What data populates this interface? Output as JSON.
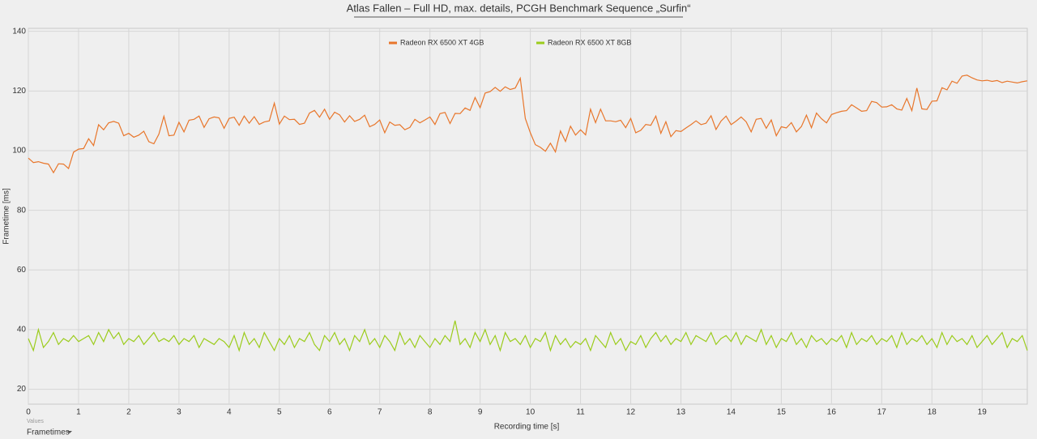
{
  "chart_data": {
    "type": "line",
    "title": "Atlas Fallen – Full HD, max. details, PCGH Benchmark Sequence „Surfin“",
    "x_label": "Recording time [s]",
    "y_label": "Frametime [ms]",
    "x_sublabel": "Values",
    "selector": "Frametimes",
    "xlim": [
      0,
      19.9
    ],
    "ylim": [
      15,
      141
    ],
    "xticks": [
      0,
      1,
      2,
      3,
      4,
      5,
      6,
      7,
      8,
      9,
      10,
      11,
      12,
      13,
      14,
      15,
      16,
      17,
      18,
      19
    ],
    "yticks": [
      20,
      40,
      60,
      80,
      100,
      120,
      140
    ],
    "grid": true,
    "legend": "top",
    "x": [
      0,
      0.1,
      0.2,
      0.3,
      0.4,
      0.5,
      0.6,
      0.7,
      0.8,
      0.9,
      1,
      1.1,
      1.2,
      1.3,
      1.4,
      1.5,
      1.6,
      1.7,
      1.8,
      1.9,
      2,
      2.1,
      2.2,
      2.3,
      2.4,
      2.5,
      2.6,
      2.7,
      2.8,
      2.9,
      3,
      3.1,
      3.2,
      3.3,
      3.4,
      3.5,
      3.6,
      3.7,
      3.8,
      3.9,
      4,
      4.1,
      4.2,
      4.3,
      4.4,
      4.5,
      4.6,
      4.7,
      4.8,
      4.9,
      5,
      5.1,
      5.2,
      5.3,
      5.4,
      5.5,
      5.6,
      5.7,
      5.8,
      5.9,
      6,
      6.1,
      6.2,
      6.3,
      6.4,
      6.5,
      6.6,
      6.7,
      6.8,
      6.9,
      7,
      7.1,
      7.2,
      7.3,
      7.4,
      7.5,
      7.6,
      7.7,
      7.8,
      7.9,
      8,
      8.1,
      8.2,
      8.3,
      8.4,
      8.5,
      8.6,
      8.7,
      8.8,
      8.9,
      9,
      9.1,
      9.2,
      9.3,
      9.4,
      9.5,
      9.6,
      9.7,
      9.8,
      9.9,
      10,
      10.1,
      10.2,
      10.3,
      10.4,
      10.5,
      10.6,
      10.7,
      10.8,
      10.9,
      11,
      11.1,
      11.2,
      11.3,
      11.4,
      11.5,
      11.6,
      11.7,
      11.8,
      11.9,
      12,
      12.1,
      12.2,
      12.3,
      12.4,
      12.5,
      12.6,
      12.7,
      12.8,
      12.9,
      13,
      13.1,
      13.2,
      13.3,
      13.4,
      13.5,
      13.6,
      13.7,
      13.8,
      13.9,
      14,
      14.1,
      14.2,
      14.3,
      14.4,
      14.5,
      14.6,
      14.7,
      14.8,
      14.9,
      15,
      15.1,
      15.2,
      15.3,
      15.4,
      15.5,
      15.6,
      15.7,
      15.8,
      15.9,
      16,
      16.1,
      16.2,
      16.3,
      16.4,
      16.5,
      16.6,
      16.7,
      16.8,
      16.9,
      17,
      17.1,
      17.2,
      17.3,
      17.4,
      17.5,
      17.6,
      17.7,
      17.8,
      17.9,
      18,
      18.1,
      18.2,
      18.3,
      18.4,
      18.5,
      18.6,
      18.7,
      18.8,
      18.9,
      19,
      19.1,
      19.2,
      19.3,
      19.4,
      19.5,
      19.6,
      19.7,
      19.8,
      19.9
    ],
    "series": [
      {
        "name": "Radeon RX 6500 XT 4GB",
        "color": "#e8762b",
        "values": [
          97.5,
          96,
          96.3,
          95.8,
          95.5,
          92.6,
          95.6,
          95.5,
          94,
          99.5,
          100.5,
          100.7,
          104,
          101.7,
          108.7,
          107,
          109.3,
          109.8,
          109.2,
          105,
          105.8,
          104.5,
          105.2,
          106.5,
          103,
          102.3,
          105.5,
          111.5,
          105,
          105.2,
          109.5,
          106.3,
          110.2,
          110.5,
          111.6,
          107.8,
          110.7,
          111.3,
          111,
          107.5,
          110.8,
          111.2,
          108.5,
          111.6,
          109.2,
          111.4,
          108.8,
          109.6,
          110,
          115.9,
          108.9,
          111.6,
          110.4,
          110.5,
          108.8,
          109.2,
          112.6,
          113.5,
          111.2,
          113.9,
          110.5,
          112.9,
          112,
          109.6,
          111.7,
          109.8,
          110.5,
          111.9,
          108,
          108.8,
          110.3,
          106,
          109.6,
          108.5,
          108.7,
          107,
          107.8,
          110.5,
          109.3,
          110.3,
          111.3,
          108.8,
          112.4,
          112.8,
          109.1,
          112.5,
          112.4,
          114.3,
          113.5,
          117.8,
          114.4,
          119.3,
          119.8,
          121.2,
          119.9,
          121.4,
          120.5,
          121,
          124.3,
          110.8,
          106,
          102,
          101.1,
          99.8,
          102.5,
          99.6,
          106.6,
          103.1,
          108.2,
          105.2,
          107,
          105.3,
          113.9,
          109.4,
          113.9,
          110,
          110,
          109.7,
          110.2,
          107.7,
          110.8,
          106,
          106.8,
          108.8,
          108.5,
          111.6,
          105.8,
          109.7,
          104.7,
          106.7,
          106.4,
          107.6,
          108.7,
          110,
          108.7,
          109.2,
          111.7,
          107.1,
          109.9,
          111.6,
          108.7,
          109.9,
          111.3,
          109.7,
          106.3,
          110.5,
          110.8,
          107.5,
          110.3,
          105,
          108,
          107.6,
          109.4,
          106.3,
          108.1,
          111.9,
          107.7,
          112.6,
          110.7,
          109.3,
          112.1,
          112.7,
          113.2,
          113.4,
          115.4,
          114.3,
          113.2,
          113.4,
          116.5,
          116.1,
          114.6,
          114.7,
          115.4,
          114,
          113.6,
          117.5,
          113.4,
          121,
          114,
          113.8,
          116.6,
          116.7,
          121.1,
          120.4,
          123.3,
          122.6,
          125,
          125.3,
          124.4,
          123.7,
          123.4,
          123.6,
          123.2,
          123.5,
          122.8,
          123.3,
          123,
          122.7,
          123.1,
          123.4
        ]
      },
      {
        "name": "Radeon RX 6500 XT 8GB",
        "color": "#9bcc1c",
        "values": [
          37,
          33,
          40,
          34,
          36,
          39,
          35,
          37,
          36,
          38,
          36,
          37,
          38,
          35,
          39,
          36,
          40,
          37,
          39,
          35,
          37,
          36,
          38,
          35,
          37,
          39,
          36,
          37,
          36,
          38,
          35,
          37,
          36,
          38,
          34,
          37,
          36,
          35,
          37,
          36,
          34,
          38,
          33,
          39,
          35,
          37,
          34,
          39,
          36,
          33,
          37,
          35,
          38,
          34,
          37,
          36,
          39,
          35,
          33,
          38,
          36,
          39,
          35,
          37,
          33,
          38,
          36,
          40,
          35,
          37,
          34,
          38,
          36,
          33,
          39,
          35,
          37,
          34,
          38,
          36,
          34,
          37,
          35,
          38,
          36,
          43,
          35,
          37,
          34,
          39,
          36,
          40,
          35,
          38,
          33,
          39,
          36,
          37,
          35,
          38,
          34,
          37,
          36,
          39,
          33,
          38,
          35,
          37,
          34,
          36,
          35,
          37,
          33,
          38,
          36,
          34,
          39,
          35,
          37,
          33,
          36,
          35,
          38,
          34,
          37,
          39,
          36,
          38,
          35,
          37,
          36,
          39,
          35,
          38,
          37,
          36,
          39,
          35,
          37,
          38,
          36,
          39,
          35,
          38,
          37,
          36,
          40,
          35,
          38,
          34,
          37,
          36,
          39,
          35,
          37,
          34,
          38,
          36,
          37,
          35,
          37,
          36,
          38,
          34,
          39,
          35,
          37,
          36,
          38,
          35,
          37,
          36,
          38,
          34,
          39,
          35,
          37,
          36,
          38,
          35,
          37,
          34,
          39,
          35,
          38,
          36,
          37,
          35,
          38,
          34,
          36,
          38,
          35,
          37,
          39,
          34,
          37,
          36,
          38,
          33
        ]
      }
    ]
  }
}
